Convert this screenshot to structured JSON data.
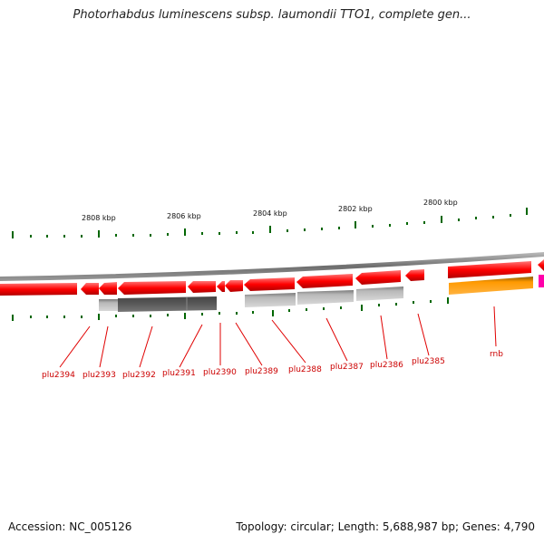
{
  "title": "Photorhabdus luminescens subsp. laumondii TTO1, complete gen...",
  "footer": {
    "accession": "Accession: NC_005126",
    "summary": "Topology: circular; Length: 5,688,987 bp; Genes: 4,790"
  },
  "scale_labels": [
    "2808 kbp",
    "2806 kbp",
    "2804 kbp",
    "2802 kbp",
    "2800 kbp"
  ],
  "gene_labels": [
    "plu2394",
    "plu2393",
    "plu2392",
    "plu2391",
    "plu2390",
    "plu2389",
    "plu2388",
    "plu2387",
    "plu2386",
    "plu2385",
    "rnb"
  ],
  "colors": {
    "gene_red": "#ff0000",
    "gene_orange": "#ff9900",
    "gene_magenta": "#ff00aa",
    "tick_green": "#006600",
    "label_red": "#cc0000",
    "backbone": "#808080"
  }
}
